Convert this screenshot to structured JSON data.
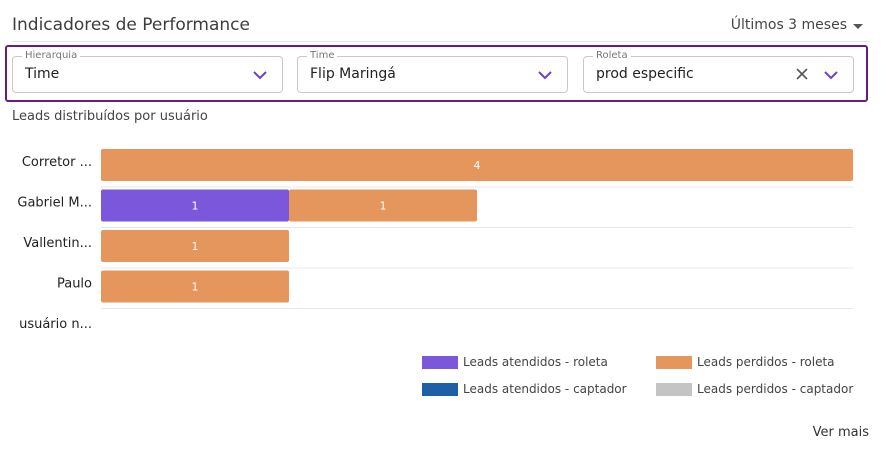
{
  "header": {
    "title": "Indicadores de Performance",
    "period": "Últimos 3 meses"
  },
  "filters": {
    "hierarquia": {
      "label": "Hierarquia",
      "value": "Time"
    },
    "time": {
      "label": "Time",
      "value": "Flip Maringá"
    },
    "roleta": {
      "label": "Roleta",
      "value": "prod especific"
    }
  },
  "chart_title": "Leads distribuídos por usuário",
  "chart_data": {
    "type": "bar",
    "orientation": "horizontal",
    "stacked": true,
    "categories": [
      "Corretor ...",
      "Gabriel M...",
      "Vallentin...",
      "Paulo",
      "usuário n..."
    ],
    "series": [
      {
        "name": "Leads atendidos - roleta",
        "color": "#7b57dc",
        "values": [
          0,
          1,
          0,
          0,
          0
        ]
      },
      {
        "name": "Leads perdidos - roleta",
        "color": "#e5965c",
        "values": [
          4,
          1,
          1,
          1,
          0
        ]
      },
      {
        "name": "Leads atendidos - captador",
        "color": "#1f5fa8",
        "values": [
          0,
          0,
          0,
          0,
          0
        ]
      },
      {
        "name": "Leads perdidos - captador",
        "color": "#c4c4c4",
        "values": [
          0,
          0,
          0,
          0,
          0
        ]
      }
    ],
    "xlim": [
      0,
      4
    ],
    "grid": true,
    "legend_position": "bottom-right"
  },
  "footer": {
    "more_label": "Ver mais"
  }
}
